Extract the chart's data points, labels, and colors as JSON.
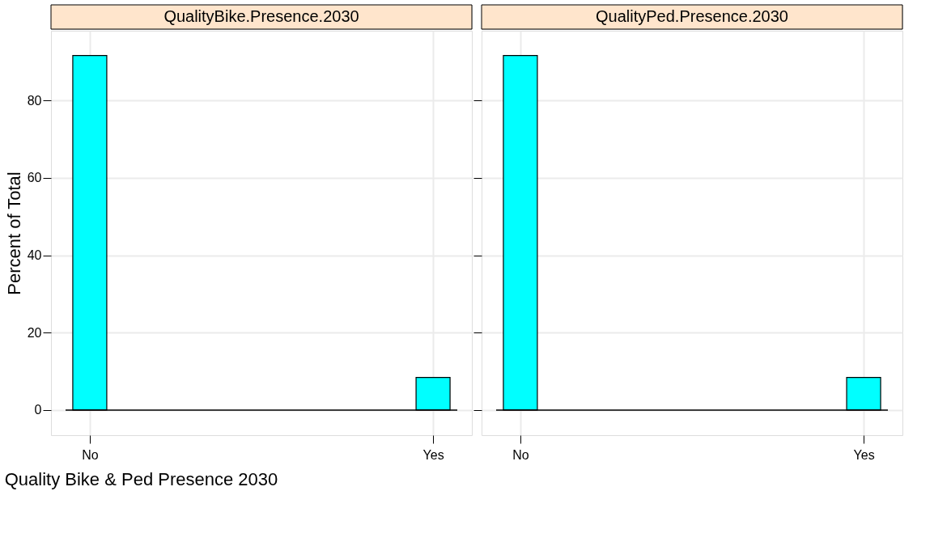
{
  "chart_data": [
    {
      "type": "bar",
      "title": "QualityBike.Presence.2030",
      "categories": [
        "No",
        "Yes"
      ],
      "values": [
        91.6,
        8.4
      ],
      "color": "#00ffff",
      "ylim": [
        -6.5,
        98
      ],
      "yticks": [
        0,
        20,
        40,
        60,
        80
      ],
      "grid": true,
      "ylabel": "Percent of Total",
      "xlabel": "Quality Bike & Ped Presence 2030",
      "ref_lines": [
        {
          "axis": "y",
          "value": 0
        }
      ]
    },
    {
      "type": "bar",
      "title": "QualityPed.Presence.2030",
      "categories": [
        "No",
        "Yes"
      ],
      "values": [
        91.6,
        8.4
      ],
      "color": "#00ffff",
      "ylim": [
        -6.5,
        98
      ],
      "yticks": [
        0,
        20,
        40,
        60,
        80
      ],
      "grid": true,
      "tick_labels": "x",
      "ref_lines": [
        {
          "axis": "y",
          "value": 0
        }
      ]
    }
  ]
}
